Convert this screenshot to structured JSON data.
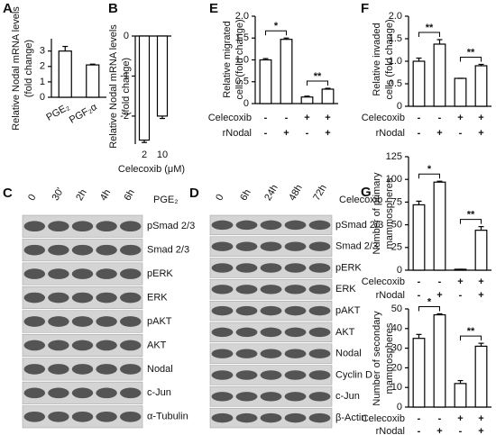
{
  "chart_data": [
    {
      "panel": "A",
      "type": "bar",
      "ylabel": [
        "Relative Nodal mRNA levels",
        "(fold change)"
      ],
      "categories": [
        "PGE₂",
        "PGF₂α"
      ],
      "values": [
        3.0,
        2.1
      ],
      "errors": [
        0.3,
        0.05
      ],
      "color": "#ffffff",
      "ylim": [
        0,
        3.8
      ],
      "yticks": [
        0,
        1,
        2,
        3
      ]
    },
    {
      "panel": "B",
      "type": "bar",
      "ylabel": [
        "Relative Nodal mRNA levels",
        "(fold change)"
      ],
      "categories": [
        "2",
        "10"
      ],
      "xlabel": "Celecoxib (μM)",
      "values": [
        -2.6,
        -2.0
      ],
      "errors": [
        0.06,
        0.06
      ],
      "color": "#ffffff",
      "ylim": [
        -2.7,
        0
      ],
      "yticks": [
        -2,
        -1,
        0
      ]
    },
    {
      "panel": "E",
      "type": "bar",
      "ylabel": [
        "Relative migrated",
        "cells (fold change)"
      ],
      "values": [
        1.0,
        1.47,
        0.15,
        0.33
      ],
      "errors": [
        0.03,
        0.03,
        0.02,
        0.02
      ],
      "color": "#ffffff",
      "ylim": [
        0,
        2
      ],
      "yticks": [
        0,
        0.5,
        {
          "value": 1,
          "label": "1.0"
        },
        1.5,
        {
          "value": 2,
          "label": "2.0"
        }
      ],
      "conditions": [
        {
          "name": "Celecoxib",
          "signs": [
            "-",
            "-",
            "+",
            "+"
          ]
        },
        {
          "name": "rNodal",
          "signs": [
            "-",
            "+",
            "-",
            "+"
          ]
        }
      ],
      "significance": [
        {
          "label": "*",
          "pair": [
            0,
            1
          ]
        },
        {
          "label": "**",
          "pair": [
            2,
            3
          ]
        }
      ]
    },
    {
      "panel": "F",
      "type": "bar",
      "ylabel": [
        "Relative invaded",
        "cells (fold change)"
      ],
      "values": [
        1.0,
        1.38,
        0.62,
        0.9
      ],
      "errors": [
        0.07,
        0.1,
        0,
        0.03
      ],
      "color": "#ffffff",
      "ylim": [
        0,
        2
      ],
      "yticks": [
        0,
        0.5,
        {
          "value": 1,
          "label": "1.0"
        },
        1.5,
        {
          "value": 2,
          "label": "2.0"
        }
      ],
      "conditions": [
        {
          "name": "Celecoxib",
          "signs": [
            "-",
            "-",
            "+",
            "+"
          ]
        },
        {
          "name": "rNodal",
          "signs": [
            "-",
            "+",
            "-",
            "+"
          ]
        }
      ],
      "significance": [
        {
          "label": "**",
          "pair": [
            0,
            1
          ]
        },
        {
          "label": "**",
          "pair": [
            2,
            3
          ]
        }
      ]
    },
    {
      "panel": "G",
      "type": "bar",
      "ylabel": [
        "Number of primary",
        "mammospheres"
      ],
      "values": [
        72,
        97,
        1,
        44
      ],
      "errors": [
        4,
        1,
        0,
        4
      ],
      "color": "#ffffff",
      "ylim": [
        0,
        125
      ],
      "yticks": [
        0,
        25,
        50,
        75,
        100,
        125
      ],
      "conditions": [
        {
          "name": "Celecoxib",
          "signs": [
            "-",
            "-",
            "+",
            "+"
          ]
        },
        {
          "name": "rNodal",
          "signs": [
            "-",
            "+",
            "-",
            "+"
          ]
        }
      ],
      "significance": [
        {
          "label": "*",
          "pair": [
            0,
            1
          ]
        },
        {
          "label": "**",
          "pair": [
            2,
            3
          ]
        }
      ]
    },
    {
      "type": "bar",
      "ylabel": [
        "Number of secondary",
        "mammospheres"
      ],
      "values": [
        35,
        47,
        12,
        31
      ],
      "errors": [
        2,
        0.5,
        1.5,
        1.5
      ],
      "color": "#ffffff",
      "ylim": [
        0,
        50
      ],
      "yticks": [
        0,
        10,
        20,
        30,
        40,
        50
      ],
      "conditions": [
        {
          "name": "Celecoxib",
          "signs": [
            "-",
            "-",
            "+",
            "+"
          ]
        },
        {
          "name": "rNodal",
          "signs": [
            "-",
            "+",
            "-",
            "+"
          ]
        }
      ],
      "significance": [
        {
          "label": "*",
          "pair": [
            0,
            1
          ]
        },
        {
          "label": "**",
          "pair": [
            2,
            3
          ]
        }
      ]
    }
  ],
  "blots": [
    {
      "panel": "C",
      "treatment": "PGE₂",
      "lanes": [
        "0",
        "30'",
        "2h",
        "4h",
        "6h"
      ],
      "rows": [
        "pSmad 2/3",
        "Smad 2/3",
        "pERK",
        "ERK",
        "pAKT",
        "AKT",
        "Nodal",
        "c-Jun",
        "α-Tubulin"
      ]
    },
    {
      "panel": "D",
      "treatment": "Celecoxib",
      "lanes": [
        "0",
        "6h",
        "24h",
        "48h",
        "72h"
      ],
      "rows": [
        "pSmad 2/3",
        "Smad 2/3",
        "pERK",
        "ERK",
        "pAKT",
        "AKT",
        "Nodal",
        "Cyclin D",
        "c-Jun",
        "β-Actin"
      ]
    }
  ]
}
